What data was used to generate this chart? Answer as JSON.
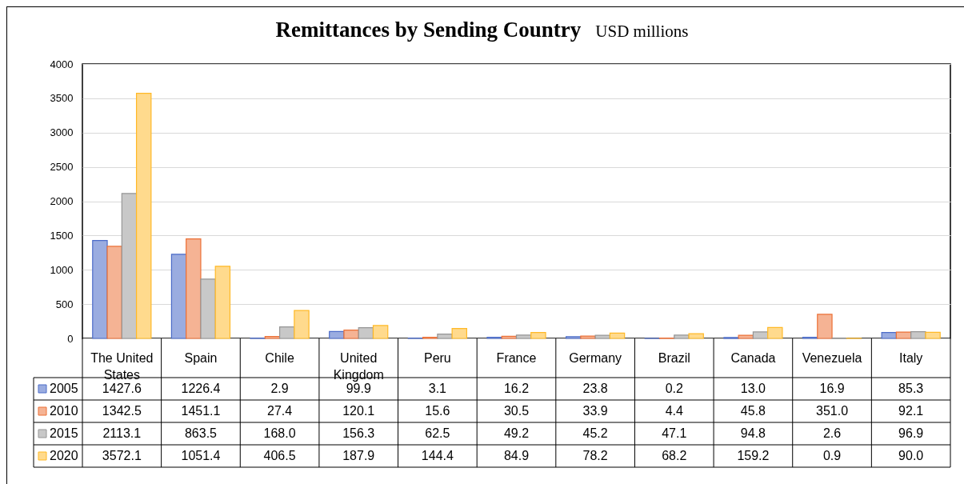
{
  "chart_data": {
    "type": "bar",
    "title": "Remittances by Sending Country",
    "subtitle": "USD millions",
    "categories": [
      "The United States",
      "Spain",
      "Chile",
      "United Kingdom",
      "Peru",
      "France",
      "Germany",
      "Brazil",
      "Canada",
      "Venezuela",
      "Italy"
    ],
    "series": [
      {
        "name": "2005",
        "color": "#9aace0",
        "values": [
          1427.6,
          1226.4,
          2.9,
          99.9,
          3.1,
          16.2,
          23.8,
          0.2,
          13.0,
          16.9,
          85.3
        ],
        "value_labels": [
          "1427.6",
          "1226.4",
          "2.9",
          "99.9",
          "3.1",
          "16.2",
          "23.8",
          "0.2",
          "13.0",
          "16.9",
          "85.3"
        ]
      },
      {
        "name": "2010",
        "color": "#f5b394",
        "values": [
          1342.5,
          1451.1,
          27.4,
          120.1,
          15.6,
          30.5,
          33.9,
          4.4,
          45.8,
          351.0,
          92.1
        ],
        "value_labels": [
          "1342.5",
          "1451.1",
          "27.4",
          "120.1",
          "15.6",
          "30.5",
          "33.9",
          "4.4",
          "45.8",
          "351.0",
          "92.1"
        ]
      },
      {
        "name": "2015",
        "color": "#c8c8c8",
        "values": [
          2113.1,
          863.5,
          168.0,
          156.3,
          62.5,
          49.2,
          45.2,
          47.1,
          94.8,
          2.6,
          96.9
        ],
        "value_labels": [
          "2113.1",
          "863.5",
          "168.0",
          "156.3",
          "62.5",
          "49.2",
          "45.2",
          "47.1",
          "94.8",
          "2.6",
          "96.9"
        ]
      },
      {
        "name": "2020",
        "color": "#ffda8d",
        "values": [
          3572.1,
          1051.4,
          406.5,
          187.9,
          144.4,
          84.9,
          78.2,
          68.2,
          159.2,
          0.9,
          90.0
        ],
        "value_labels": [
          "3572.1",
          "1051.4",
          "406.5",
          "187.9",
          "144.4",
          "84.9",
          "78.2",
          "68.2",
          "159.2",
          "0.9",
          "90.0"
        ]
      }
    ],
    "ylim": [
      0,
      4000
    ],
    "yticks": [
      0,
      500,
      1000,
      1500,
      2000,
      2500,
      3000,
      3500,
      4000
    ],
    "grid": "y",
    "legend": "bottom left"
  }
}
